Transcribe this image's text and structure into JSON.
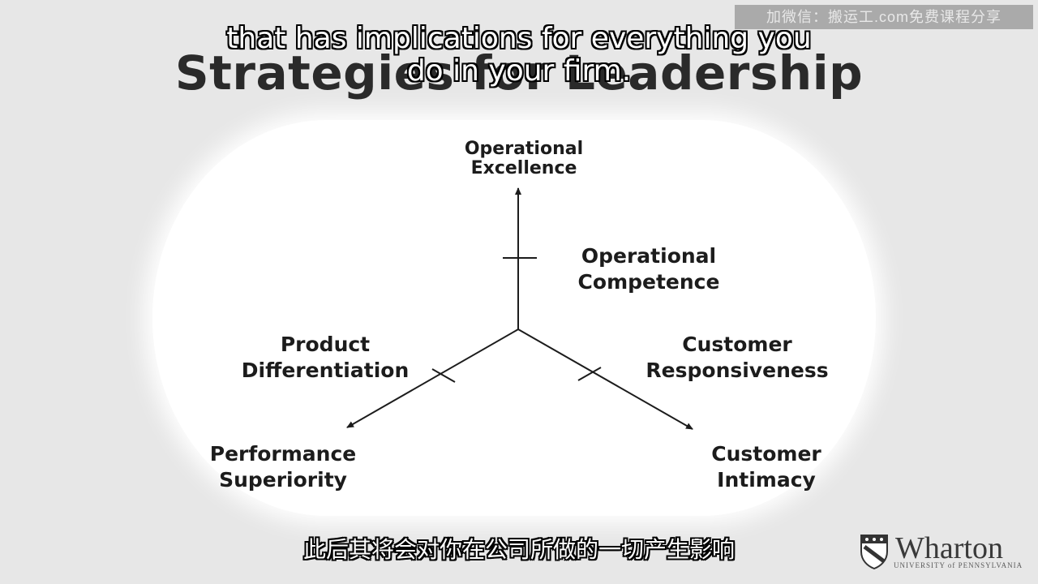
{
  "slide": {
    "title": "Strategies for Leadership"
  },
  "captions": {
    "en_line1": "that has implications for everything you",
    "en_line2": "do in your firm.",
    "zh": "此后其将会对你在公司所做的一切产生影响"
  },
  "watermark": {
    "text": "加微信：搬运工.com免费课程分享"
  },
  "diagram": {
    "axis_top_end": [
      "Operational",
      "Excellence"
    ],
    "axis_top_mid": [
      "Operational",
      "Competence"
    ],
    "axis_left_mid": [
      "Product",
      "Differentiation"
    ],
    "axis_left_end": [
      "Performance",
      "Superiority"
    ],
    "axis_right_mid": [
      "Customer",
      "Responsiveness"
    ],
    "axis_right_end": [
      "Customer",
      "Intimacy"
    ]
  },
  "logo": {
    "name": "Wharton",
    "subtitle": "UNIVERSITY of PENNSYLVANIA",
    "shield_icon": "penn-shield-icon"
  },
  "colors": {
    "background": "#e7e7e7",
    "panel": "#ffffff",
    "ink": "#1c1c1c"
  }
}
